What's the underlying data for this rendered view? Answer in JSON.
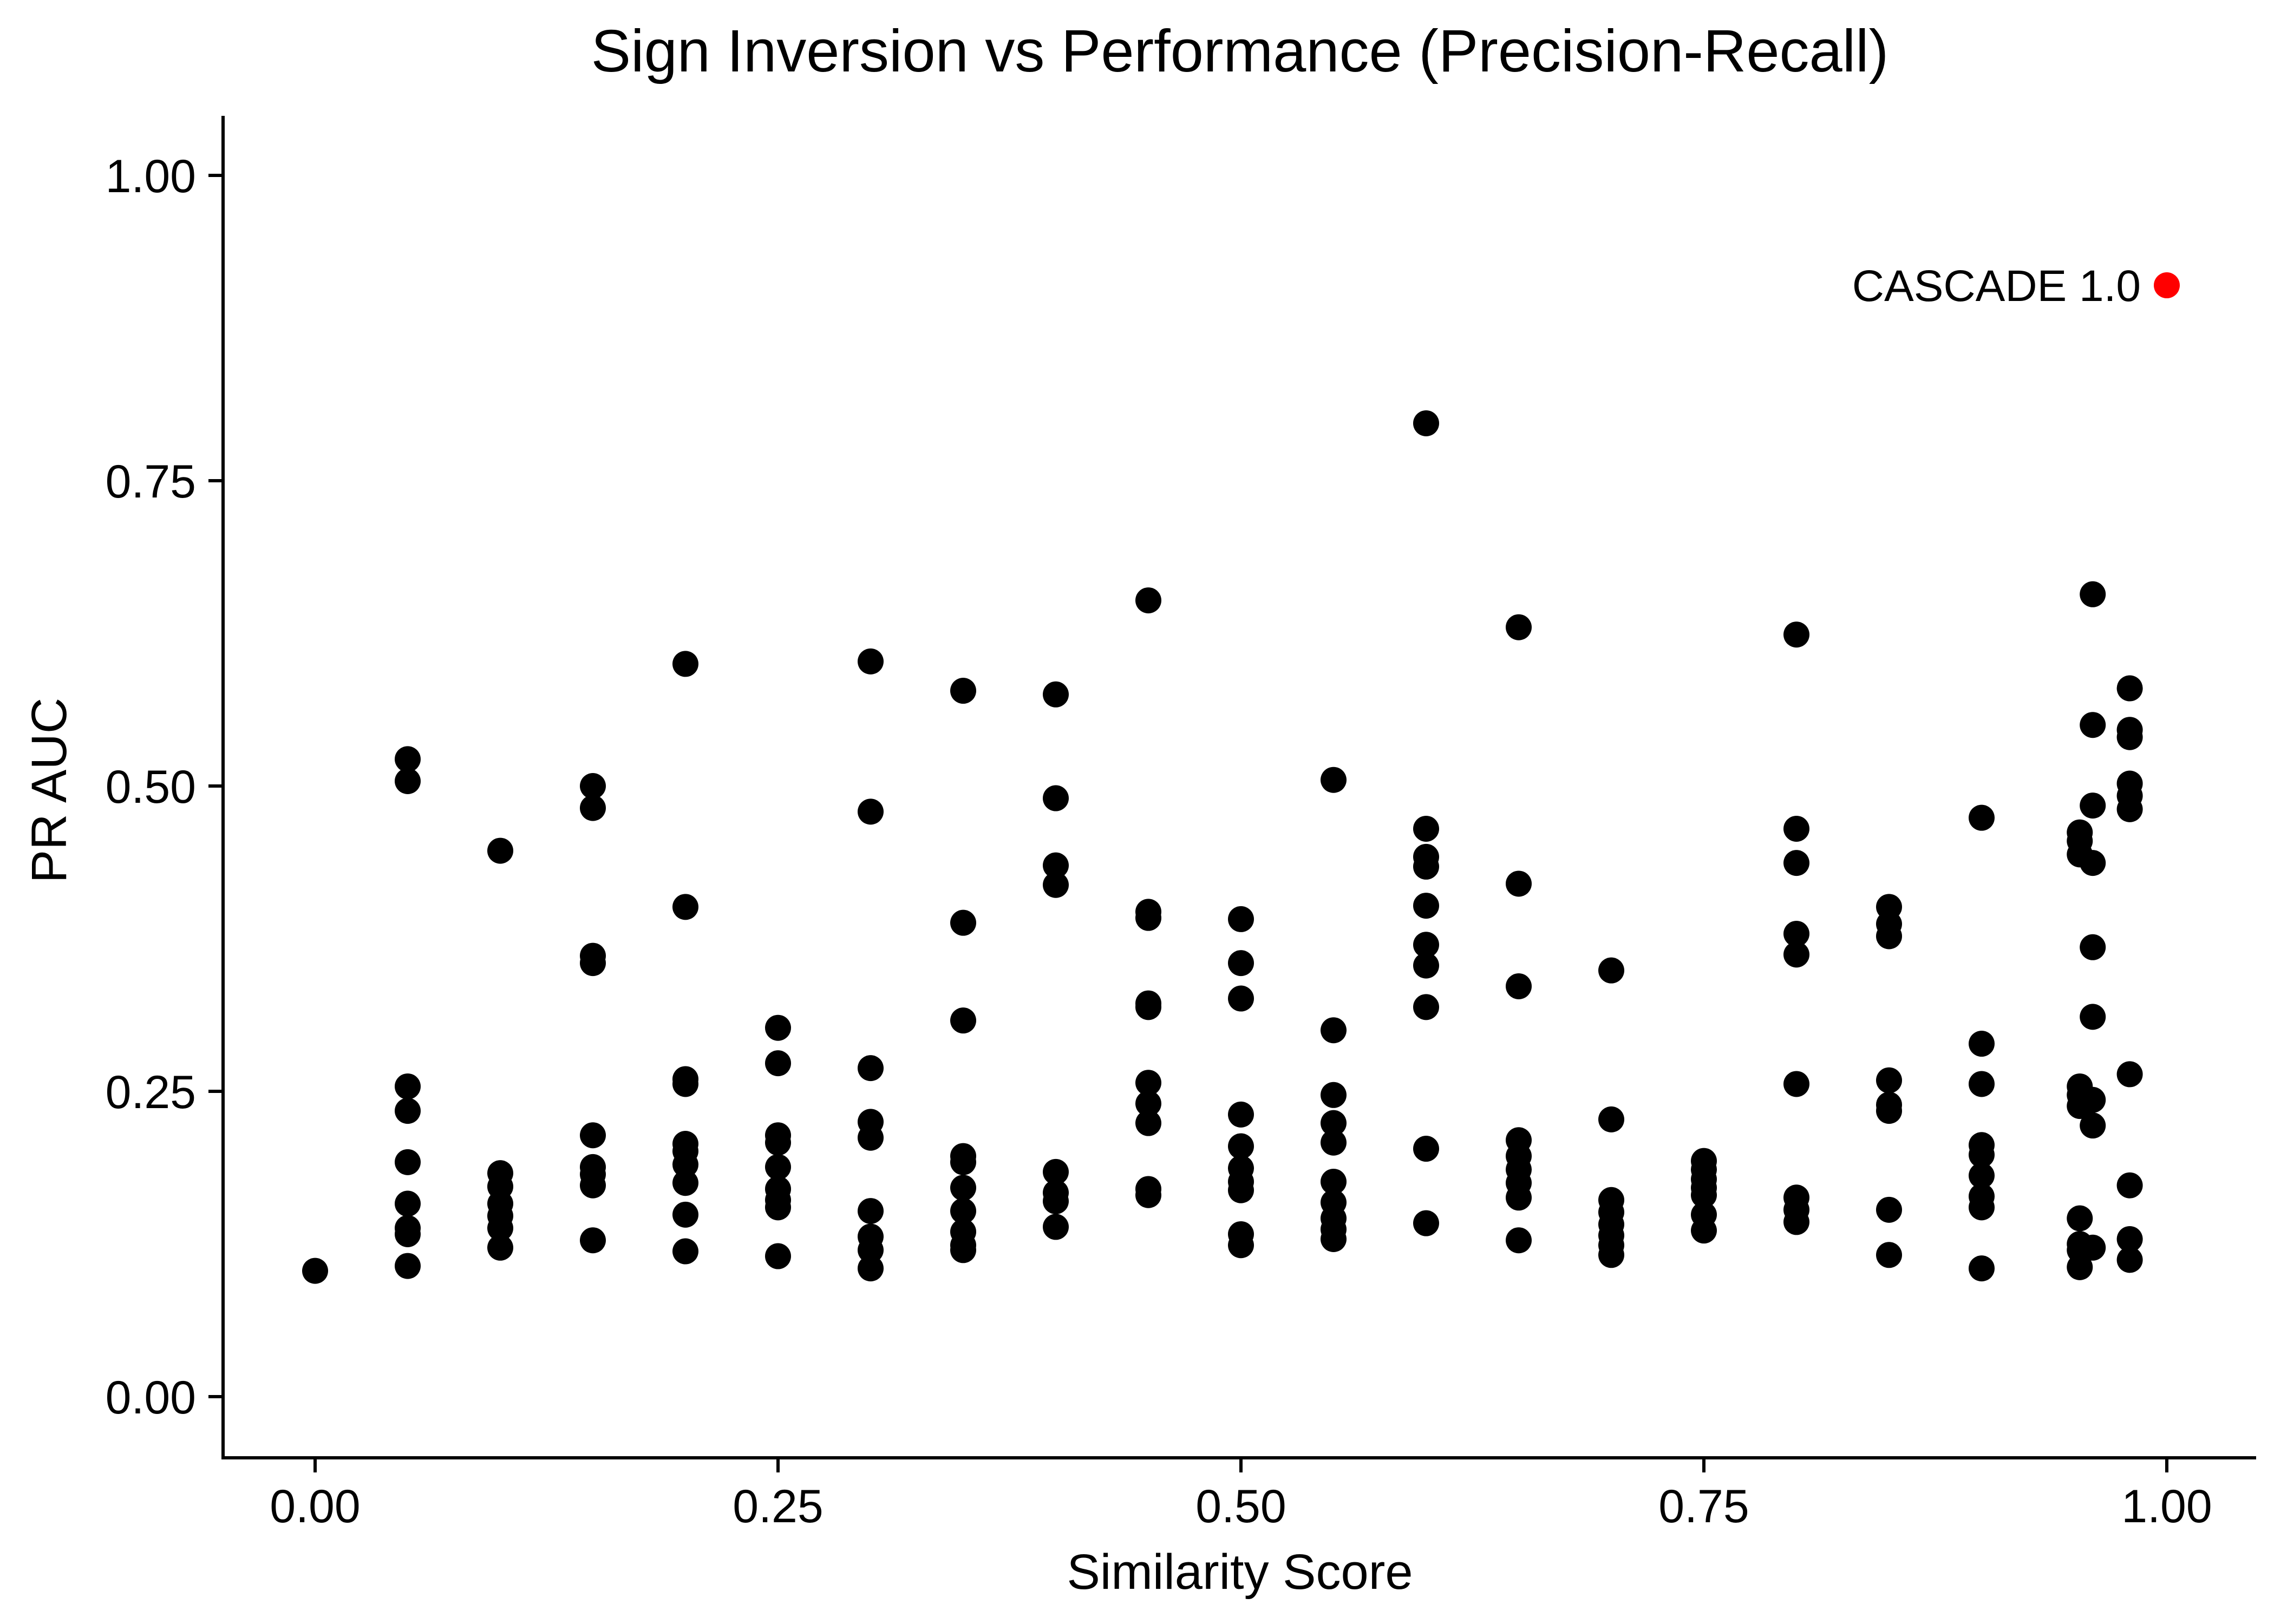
{
  "chart_data": {
    "type": "scatter",
    "title": "Sign Inversion vs Performance (Precision-Recall)",
    "xlabel": "Similarity Score",
    "ylabel": "PR AUC",
    "xlim": [
      -0.05,
      1.05
    ],
    "ylim": [
      -0.05,
      1.05
    ],
    "x_ticks": [
      0.0,
      0.25,
      0.5,
      0.75,
      1.0
    ],
    "x_tick_labels": [
      "0.00",
      "0.25",
      "0.50",
      "0.75",
      "1.00"
    ],
    "y_ticks": [
      0.0,
      0.25,
      0.5,
      0.75,
      1.0
    ],
    "y_tick_labels": [
      "0.00",
      "0.25",
      "0.50",
      "0.75",
      "1.00"
    ],
    "grid": false,
    "legend": "none",
    "point_color": "#000000",
    "highlight_color": "#ff0000",
    "series": [
      {
        "name": "",
        "points": [
          [
            0.0,
            0.103
          ],
          [
            0.05,
            0.522
          ],
          [
            0.05,
            0.504
          ],
          [
            0.05,
            0.254
          ],
          [
            0.05,
            0.234
          ],
          [
            0.05,
            0.192
          ],
          [
            0.05,
            0.158
          ],
          [
            0.05,
            0.138
          ],
          [
            0.05,
            0.133
          ],
          [
            0.05,
            0.107
          ],
          [
            0.1,
            0.447
          ],
          [
            0.1,
            0.183
          ],
          [
            0.1,
            0.172
          ],
          [
            0.1,
            0.158
          ],
          [
            0.1,
            0.148
          ],
          [
            0.1,
            0.138
          ],
          [
            0.1,
            0.122
          ],
          [
            0.15,
            0.5
          ],
          [
            0.15,
            0.482
          ],
          [
            0.15,
            0.361
          ],
          [
            0.15,
            0.355
          ],
          [
            0.15,
            0.214
          ],
          [
            0.15,
            0.188
          ],
          [
            0.15,
            0.182
          ],
          [
            0.15,
            0.173
          ],
          [
            0.15,
            0.128
          ],
          [
            0.2,
            0.6
          ],
          [
            0.2,
            0.401
          ],
          [
            0.2,
            0.26
          ],
          [
            0.2,
            0.256
          ],
          [
            0.2,
            0.207
          ],
          [
            0.2,
            0.201
          ],
          [
            0.2,
            0.19
          ],
          [
            0.2,
            0.175
          ],
          [
            0.2,
            0.149
          ],
          [
            0.2,
            0.119
          ],
          [
            0.25,
            0.302
          ],
          [
            0.25,
            0.273
          ],
          [
            0.25,
            0.214
          ],
          [
            0.25,
            0.208
          ],
          [
            0.25,
            0.188
          ],
          [
            0.25,
            0.17
          ],
          [
            0.25,
            0.161
          ],
          [
            0.25,
            0.155
          ],
          [
            0.25,
            0.115
          ],
          [
            0.3,
            0.602
          ],
          [
            0.3,
            0.479
          ],
          [
            0.3,
            0.269
          ],
          [
            0.3,
            0.225
          ],
          [
            0.3,
            0.212
          ],
          [
            0.3,
            0.152
          ],
          [
            0.3,
            0.131
          ],
          [
            0.3,
            0.12
          ],
          [
            0.3,
            0.105
          ],
          [
            0.35,
            0.578
          ],
          [
            0.35,
            0.388
          ],
          [
            0.35,
            0.308
          ],
          [
            0.35,
            0.197
          ],
          [
            0.35,
            0.192
          ],
          [
            0.35,
            0.171
          ],
          [
            0.35,
            0.152
          ],
          [
            0.35,
            0.135
          ],
          [
            0.35,
            0.124
          ],
          [
            0.35,
            0.12
          ],
          [
            0.4,
            0.575
          ],
          [
            0.4,
            0.49
          ],
          [
            0.4,
            0.435
          ],
          [
            0.4,
            0.419
          ],
          [
            0.4,
            0.184
          ],
          [
            0.4,
            0.167
          ],
          [
            0.4,
            0.16
          ],
          [
            0.4,
            0.139
          ],
          [
            0.45,
            0.652
          ],
          [
            0.45,
            0.397
          ],
          [
            0.45,
            0.392
          ],
          [
            0.45,
            0.322
          ],
          [
            0.45,
            0.319
          ],
          [
            0.45,
            0.257
          ],
          [
            0.45,
            0.24
          ],
          [
            0.45,
            0.224
          ],
          [
            0.45,
            0.17
          ],
          [
            0.45,
            0.165
          ],
          [
            0.5,
            0.391
          ],
          [
            0.5,
            0.355
          ],
          [
            0.5,
            0.326
          ],
          [
            0.5,
            0.231
          ],
          [
            0.5,
            0.205
          ],
          [
            0.5,
            0.187
          ],
          [
            0.5,
            0.176
          ],
          [
            0.5,
            0.169
          ],
          [
            0.5,
            0.133
          ],
          [
            0.5,
            0.124
          ],
          [
            0.55,
            0.505
          ],
          [
            0.55,
            0.3
          ],
          [
            0.55,
            0.247
          ],
          [
            0.55,
            0.224
          ],
          [
            0.55,
            0.208
          ],
          [
            0.55,
            0.176
          ],
          [
            0.55,
            0.159
          ],
          [
            0.55,
            0.146
          ],
          [
            0.55,
            0.137
          ],
          [
            0.55,
            0.129
          ],
          [
            0.6,
            0.797
          ],
          [
            0.6,
            0.465
          ],
          [
            0.6,
            0.442
          ],
          [
            0.6,
            0.434
          ],
          [
            0.6,
            0.402
          ],
          [
            0.6,
            0.37
          ],
          [
            0.6,
            0.353
          ],
          [
            0.6,
            0.319
          ],
          [
            0.6,
            0.203
          ],
          [
            0.6,
            0.142
          ],
          [
            0.65,
            0.63
          ],
          [
            0.65,
            0.42
          ],
          [
            0.65,
            0.336
          ],
          [
            0.65,
            0.21
          ],
          [
            0.65,
            0.197
          ],
          [
            0.65,
            0.186
          ],
          [
            0.65,
            0.175
          ],
          [
            0.65,
            0.163
          ],
          [
            0.65,
            0.128
          ],
          [
            0.7,
            0.349
          ],
          [
            0.7,
            0.227
          ],
          [
            0.7,
            0.161
          ],
          [
            0.7,
            0.151
          ],
          [
            0.7,
            0.141
          ],
          [
            0.7,
            0.132
          ],
          [
            0.7,
            0.124
          ],
          [
            0.7,
            0.116
          ],
          [
            0.75,
            0.193
          ],
          [
            0.75,
            0.186
          ],
          [
            0.75,
            0.178
          ],
          [
            0.75,
            0.171
          ],
          [
            0.75,
            0.165
          ],
          [
            0.75,
            0.149
          ],
          [
            0.75,
            0.136
          ],
          [
            0.8,
            0.624
          ],
          [
            0.8,
            0.465
          ],
          [
            0.8,
            0.437
          ],
          [
            0.8,
            0.379
          ],
          [
            0.8,
            0.362
          ],
          [
            0.8,
            0.256
          ],
          [
            0.8,
            0.163
          ],
          [
            0.8,
            0.153
          ],
          [
            0.8,
            0.143
          ],
          [
            0.85,
            0.401
          ],
          [
            0.85,
            0.387
          ],
          [
            0.85,
            0.377
          ],
          [
            0.85,
            0.259
          ],
          [
            0.85,
            0.239
          ],
          [
            0.85,
            0.234
          ],
          [
            0.85,
            0.153
          ],
          [
            0.85,
            0.116
          ],
          [
            0.9,
            0.474
          ],
          [
            0.9,
            0.289
          ],
          [
            0.9,
            0.256
          ],
          [
            0.9,
            0.206
          ],
          [
            0.9,
            0.198
          ],
          [
            0.9,
            0.181
          ],
          [
            0.9,
            0.164
          ],
          [
            0.9,
            0.155
          ],
          [
            0.9,
            0.105
          ],
          [
            0.953,
            0.462
          ],
          [
            0.953,
            0.455
          ],
          [
            0.953,
            0.444
          ],
          [
            0.953,
            0.254
          ],
          [
            0.953,
            0.247
          ],
          [
            0.953,
            0.238
          ],
          [
            0.953,
            0.146
          ],
          [
            0.953,
            0.125
          ],
          [
            0.953,
            0.12
          ],
          [
            0.953,
            0.106
          ],
          [
            0.96,
            0.657
          ],
          [
            0.96,
            0.55
          ],
          [
            0.96,
            0.484
          ],
          [
            0.96,
            0.437
          ],
          [
            0.96,
            0.368
          ],
          [
            0.96,
            0.311
          ],
          [
            0.96,
            0.243
          ],
          [
            0.96,
            0.222
          ],
          [
            0.96,
            0.122
          ],
          [
            0.98,
            0.58
          ],
          [
            0.98,
            0.546
          ],
          [
            0.98,
            0.54
          ],
          [
            0.98,
            0.502
          ],
          [
            0.98,
            0.492
          ],
          [
            0.98,
            0.481
          ],
          [
            0.98,
            0.264
          ],
          [
            0.98,
            0.173
          ],
          [
            0.98,
            0.129
          ],
          [
            0.98,
            0.112
          ]
        ]
      }
    ],
    "highlight": {
      "label": "CASCADE 1.0",
      "x": 1.0,
      "y": 0.91,
      "color": "#ff0000"
    }
  }
}
